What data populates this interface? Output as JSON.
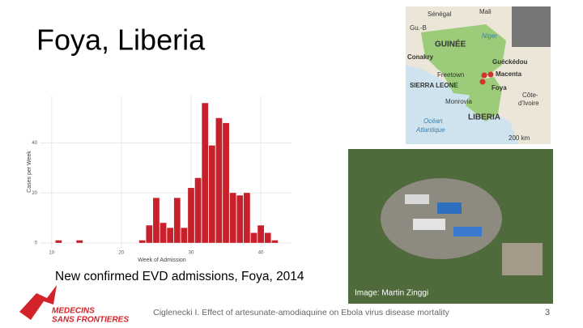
{
  "slide": {
    "title": "Foya, Liberia",
    "caption": "New confirmed EVD admissions, Foya, 2014",
    "image_credit": "Image: Martin Zinggi",
    "footer": "Ciglenecki I. Effect of artesunate-amodiaquine on Ebola virus disease mortality",
    "page_number": "3",
    "logo": [
      "MEDECINS",
      "SANS FRONTIERES"
    ]
  },
  "map": {
    "labels": [
      "Sénégal",
      "Mali",
      "Gu.-B",
      "GUINÉE",
      "Conakry",
      "Guéckédou",
      "Macenta",
      "Freetown",
      "SIERRA LEONE",
      "Foya",
      "Monrovia",
      "Océan",
      "Atlantique",
      "Côte-",
      "d'Ivoire",
      "LIBERIA",
      "Niger",
      "200 km"
    ]
  },
  "chart_data": {
    "type": "bar",
    "x_label": "Week of Admission",
    "y_label": "Cases per Week",
    "x": [
      11,
      14,
      23,
      24,
      25,
      26,
      27,
      28,
      29,
      30,
      31,
      32,
      33,
      34,
      35,
      36,
      37,
      38,
      39,
      40,
      41,
      42
    ],
    "values": [
      1,
      1,
      1,
      7,
      18,
      8,
      6,
      18,
      6,
      22,
      26,
      56,
      39,
      50,
      48,
      20,
      19,
      20,
      4,
      7,
      4,
      1
    ],
    "color": "#c8202a",
    "xlim": [
      8.4,
      44.4
    ],
    "ylim": [
      -2,
      59
    ],
    "xticks": [
      10,
      20,
      30,
      40
    ],
    "yticks": [
      0,
      20,
      40
    ],
    "grid": true
  }
}
